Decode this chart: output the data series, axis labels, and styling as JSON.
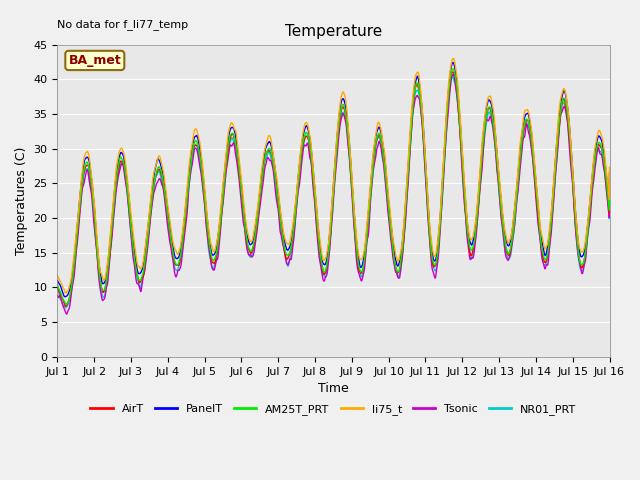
{
  "title": "Temperature",
  "xlabel": "Time",
  "ylabel": "Temperatures (C)",
  "note": "No data for f_li77_temp",
  "legend_label": "BA_met",
  "ylim": [
    0,
    45
  ],
  "yticks": [
    0,
    5,
    10,
    15,
    20,
    25,
    30,
    35,
    40,
    45
  ],
  "xtick_labels": [
    "Jul 1",
    "Jul 2",
    "Jul 3",
    "Jul 4",
    "Jul 5",
    "Jul 6",
    "Jul 7",
    "Jul 8",
    "Jul 9",
    "Jul 10",
    "Jul 11",
    "Jul 12",
    "Jul 13",
    "Jul 14",
    "Jul 15",
    "Jul 16"
  ],
  "series_order": [
    "NR01_PRT",
    "Tsonic",
    "AirT",
    "PanelT",
    "AM25T_PRT",
    "li75_t"
  ],
  "series": {
    "AirT": {
      "color": "#ff0000"
    },
    "PanelT": {
      "color": "#0000ff"
    },
    "AM25T_PRT": {
      "color": "#00ee00"
    },
    "li75_t": {
      "color": "#ffaa00"
    },
    "Tsonic": {
      "color": "#cc00cc"
    },
    "NR01_PRT": {
      "color": "#00cccc"
    }
  },
  "day_peaks": [
    13,
    32,
    27,
    27,
    32,
    32,
    29,
    33,
    37,
    30,
    42,
    41,
    34,
    34,
    38,
    28
  ],
  "day_mins": [
    7,
    9,
    10,
    13,
    13,
    15,
    15,
    12,
    12,
    12,
    12,
    15,
    15,
    14,
    13,
    13
  ],
  "background_color": "#e8e8e8",
  "fig_bg": "#f0f0f0",
  "n_days": 15,
  "pts_per_day": 144,
  "linewidth": 1.0,
  "title_fontsize": 11,
  "tick_fontsize": 8,
  "label_fontsize": 9,
  "note_fontsize": 8,
  "legend_fontsize": 8
}
